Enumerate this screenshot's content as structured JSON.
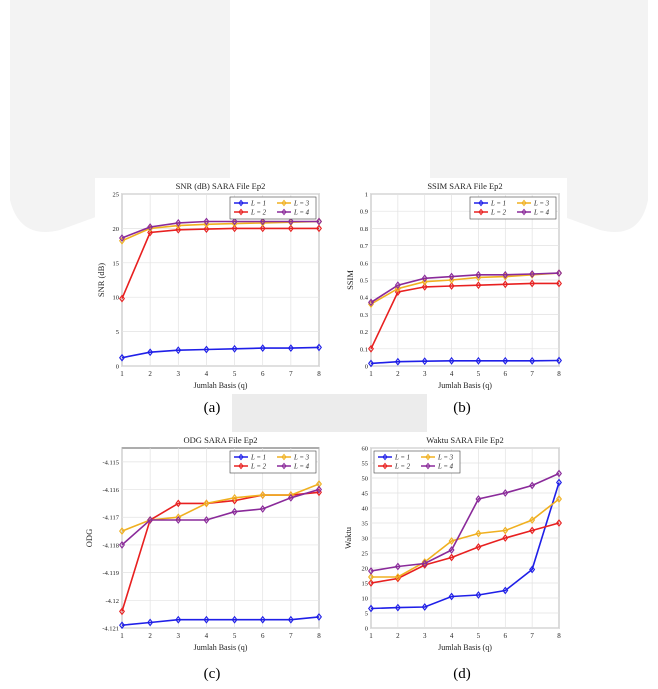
{
  "page": {
    "background_watermark_color": "#ececec",
    "series_colors": [
      "#1f1fe8",
      "#e82020",
      "#f0b020",
      "#8a2a9a"
    ]
  },
  "captions": [
    "(a)",
    "(b)",
    "(c)",
    "(d)"
  ],
  "chart_data": [
    {
      "type": "line",
      "title": "SNR (dB) SARA File Ep2",
      "xlabel": "Jumlah Basis (q)",
      "ylabel": "SNR (dB)",
      "x": [
        1,
        2,
        3,
        4,
        5,
        6,
        7,
        8
      ],
      "xticks": [
        "1",
        "2",
        "3",
        "4",
        "5",
        "6",
        "7",
        "8"
      ],
      "ylim": [
        0,
        25
      ],
      "yticks": [
        "0",
        "5",
        "10",
        "15",
        "20",
        "25"
      ],
      "ytick_values": [
        0,
        5,
        10,
        15,
        20,
        25
      ],
      "grid": true,
      "legend_position": "top-right",
      "series": [
        {
          "name": "L = 1",
          "values": [
            1.2,
            2.0,
            2.3,
            2.4,
            2.5,
            2.6,
            2.6,
            2.7
          ]
        },
        {
          "name": "L = 2",
          "values": [
            9.8,
            19.4,
            19.8,
            19.9,
            20.0,
            20.0,
            20.0,
            20.0
          ]
        },
        {
          "name": "L = 3",
          "values": [
            18.2,
            20.0,
            20.4,
            20.6,
            20.7,
            20.8,
            20.9,
            21.0
          ]
        },
        {
          "name": "L = 4",
          "values": [
            18.6,
            20.2,
            20.8,
            21.0,
            21.0,
            21.0,
            21.0,
            21.0
          ]
        }
      ]
    },
    {
      "type": "line",
      "title": "SSIM SARA File Ep2",
      "xlabel": "Jumlah Basis (q)",
      "ylabel": "SSIM",
      "x": [
        1,
        2,
        3,
        4,
        5,
        6,
        7,
        8
      ],
      "xticks": [
        "1",
        "2",
        "3",
        "4",
        "5",
        "6",
        "7",
        "8"
      ],
      "ylim": [
        0,
        1
      ],
      "yticks": [
        "0",
        "0.1",
        "0.2",
        "0.3",
        "0.4",
        "0.5",
        "0.6",
        "0.7",
        "0.8",
        "0.9",
        "1"
      ],
      "ytick_values": [
        0,
        0.1,
        0.2,
        0.3,
        0.4,
        0.5,
        0.6,
        0.7,
        0.8,
        0.9,
        1
      ],
      "grid": true,
      "legend_position": "top-right",
      "series": [
        {
          "name": "L = 1",
          "values": [
            0.015,
            0.025,
            0.028,
            0.03,
            0.03,
            0.03,
            0.03,
            0.032
          ]
        },
        {
          "name": "L = 2",
          "values": [
            0.1,
            0.43,
            0.46,
            0.465,
            0.47,
            0.475,
            0.48,
            0.48
          ]
        },
        {
          "name": "L = 3",
          "values": [
            0.36,
            0.45,
            0.49,
            0.5,
            0.515,
            0.52,
            0.53,
            0.54
          ]
        },
        {
          "name": "L = 4",
          "values": [
            0.37,
            0.47,
            0.51,
            0.52,
            0.53,
            0.53,
            0.535,
            0.54
          ]
        }
      ]
    },
    {
      "type": "line",
      "title": "ODG SARA File Ep2",
      "xlabel": "Jumlah Basis (q)",
      "ylabel": "ODG",
      "x": [
        1,
        2,
        3,
        4,
        5,
        6,
        7,
        8
      ],
      "xticks": [
        "1",
        "2",
        "3",
        "4",
        "5",
        "6",
        "7",
        "8"
      ],
      "ylim": [
        -4.121,
        -4.1145
      ],
      "yticks": [
        "-4.121",
        "-4.12",
        "-4.119",
        "-4.118",
        "-4.117",
        "-4.116",
        "-4.115"
      ],
      "ytick_values": [
        -4.121,
        -4.12,
        -4.119,
        -4.118,
        -4.117,
        -4.116,
        -4.115
      ],
      "grid": true,
      "legend_position": "top-right",
      "series": [
        {
          "name": "L = 1",
          "values": [
            -4.1209,
            -4.1208,
            -4.1207,
            -4.1207,
            -4.1207,
            -4.1207,
            -4.1207,
            -4.1206
          ]
        },
        {
          "name": "L = 2",
          "values": [
            -4.1204,
            -4.1171,
            -4.1165,
            -4.1165,
            -4.1164,
            -4.1162,
            -4.1162,
            -4.1161
          ]
        },
        {
          "name": "L = 3",
          "values": [
            -4.1175,
            -4.1171,
            -4.117,
            -4.1165,
            -4.1163,
            -4.1162,
            -4.1162,
            -4.1158
          ]
        },
        {
          "name": "L = 4",
          "values": [
            -4.118,
            -4.1171,
            -4.1171,
            -4.1171,
            -4.1168,
            -4.1167,
            -4.1163,
            -4.116
          ]
        }
      ]
    },
    {
      "type": "line",
      "title": "Waktu SARA File Ep2",
      "xlabel": "Jumlah Basis (q)",
      "ylabel": "Waktu",
      "x": [
        1,
        2,
        3,
        4,
        5,
        6,
        7,
        8
      ],
      "xticks": [
        "1",
        "2",
        "3",
        "4",
        "5",
        "6",
        "7",
        "8"
      ],
      "ylim": [
        0,
        60
      ],
      "yticks": [
        "0",
        "5",
        "10",
        "15",
        "20",
        "25",
        "30",
        "35",
        "40",
        "45",
        "50",
        "55",
        "60"
      ],
      "ytick_values": [
        0,
        5,
        10,
        15,
        20,
        25,
        30,
        35,
        40,
        45,
        50,
        55,
        60
      ],
      "grid": true,
      "legend_position": "top-left",
      "series": [
        {
          "name": "L = 1",
          "values": [
            6.5,
            6.8,
            7.0,
            10.5,
            11.0,
            12.5,
            19.5,
            48.5
          ]
        },
        {
          "name": "L = 2",
          "values": [
            15.0,
            16.5,
            21.0,
            23.5,
            27.0,
            30.0,
            32.5,
            35.0
          ]
        },
        {
          "name": "L = 3",
          "values": [
            17.0,
            17.0,
            22.0,
            29.0,
            31.5,
            32.5,
            36.0,
            43.0
          ]
        },
        {
          "name": "L = 4",
          "values": [
            19.0,
            20.5,
            21.5,
            26.0,
            43.0,
            45.0,
            47.5,
            51.5
          ]
        }
      ]
    }
  ]
}
